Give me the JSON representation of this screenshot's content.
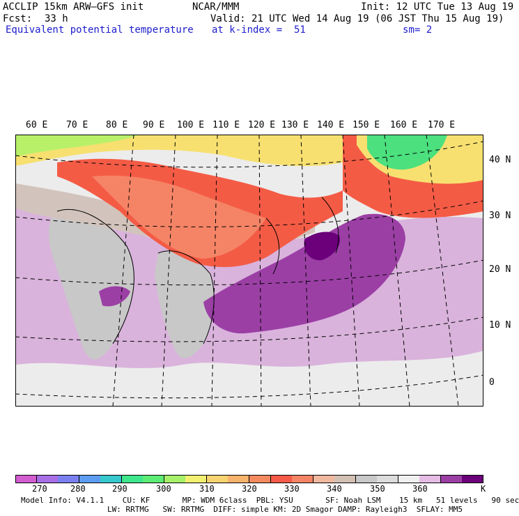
{
  "header": {
    "model": "ACCLIP 15km ARW–GFS init",
    "center": "NCAR/MMM",
    "init": "Init: 12 UTC Tue 13 Aug 19",
    "fcst_label": "Fcst:",
    "fcst_value": "33 h",
    "valid": "Valid: 21 UTC Wed 14 Aug 19 (06 JST Thu 15 Aug 19)",
    "field": "Equivalent potential temperature",
    "level": "at k-index =  51",
    "smoothing": "sm= 2"
  },
  "map": {
    "lon_labels": [
      "60 E",
      "70 E",
      "80 E",
      "90 E",
      "100 E",
      "110 E",
      "120 E",
      "130 E",
      "140 E",
      "150 E",
      "160 E",
      "170 E"
    ],
    "lat_labels": [
      "40 N",
      "30 N",
      "20 N",
      "10 N",
      "0"
    ],
    "colors": {
      "land_low": "#c8c8c8",
      "sea_light": "#eeeeee",
      "lavender": "#d9b3dc",
      "purple_mid": "#9b3fa5",
      "purple_dark": "#6b007a",
      "orange": "#f58466",
      "red": "#f45b45",
      "yellow": "#f7e070",
      "light_green": "#b8f06a",
      "green": "#4ce07e"
    }
  },
  "colorbar": {
    "unit": "K",
    "ticks": [
      "270",
      "280",
      "290",
      "300",
      "310",
      "320",
      "330",
      "340",
      "350",
      "360"
    ],
    "colors": [
      "#d25cd0",
      "#a86ee6",
      "#7b80f0",
      "#5c9df2",
      "#36c8cc",
      "#3ee68c",
      "#5cec76",
      "#a6f06a",
      "#f2f070",
      "#f5d470",
      "#f7b26c",
      "#f58a5e",
      "#f45a48",
      "#f58466",
      "#f0b89e",
      "#d3c0b4",
      "#c8c8c8",
      "#dcdcdc",
      "#f0f0f0",
      "#e4bce4",
      "#9b3fa5",
      "#6b007a"
    ]
  },
  "footer": {
    "line1": "Model Info: V4.1.1    CU: KF       MP: WDM 6class  PBL: YSU       SF: Noah LSM    15 km   51 levels   90 sec",
    "line2": "LW: RRTMG   SW: RRTMG  DIFF: simple KM: 2D Smagor DAMP: Rayleigh3  SFLAY: MM5"
  }
}
